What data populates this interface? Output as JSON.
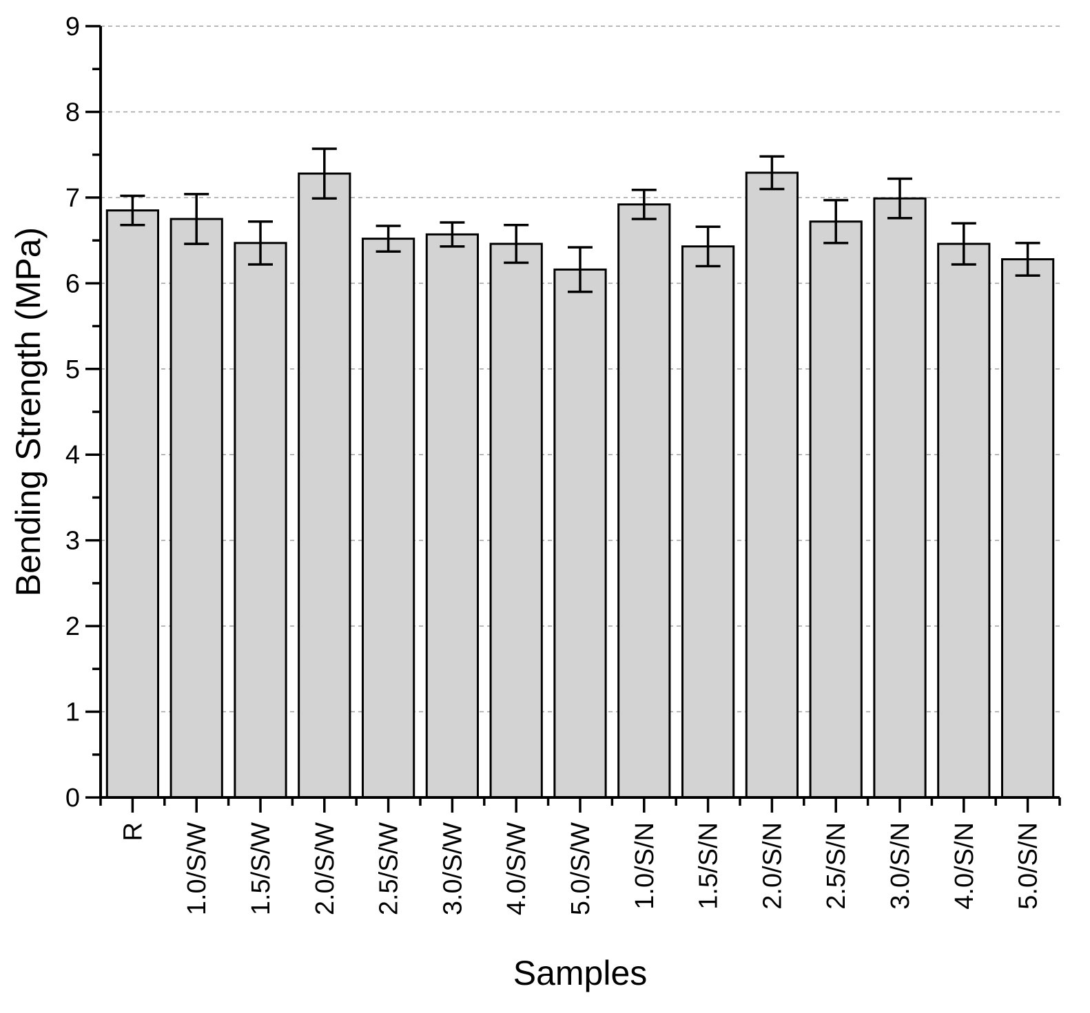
{
  "chart_data": {
    "type": "bar",
    "title": "",
    "xlabel": "Samples",
    "ylabel": "Bending Strength (MPa)",
    "ylim": [
      0,
      9
    ],
    "yticks": [
      0,
      1,
      2,
      3,
      4,
      5,
      6,
      7,
      8,
      9
    ],
    "grid": "horizontal dashed",
    "categories": [
      "R",
      "1.0/S/W",
      "1.5/S/W",
      "2.0/S/W",
      "2.5/S/W",
      "3.0/S/W",
      "4.0/S/W",
      "5.0/S/W",
      "1.0/S/N",
      "1.5/S/N",
      "2.0/S/N",
      "2.5/S/N",
      "3.0/S/N",
      "4.0/S/N",
      "5.0/S/N"
    ],
    "values": [
      6.85,
      6.75,
      6.47,
      7.28,
      6.52,
      6.57,
      6.46,
      6.16,
      6.92,
      6.43,
      7.29,
      6.72,
      6.99,
      6.46,
      6.28
    ],
    "errors": [
      0.17,
      0.29,
      0.25,
      0.29,
      0.15,
      0.14,
      0.22,
      0.26,
      0.17,
      0.23,
      0.19,
      0.25,
      0.23,
      0.24,
      0.19
    ],
    "colors": {
      "bar_fill": "#d3d3d3",
      "bar_stroke": "#000000",
      "grid": "#a0a0a0"
    }
  }
}
